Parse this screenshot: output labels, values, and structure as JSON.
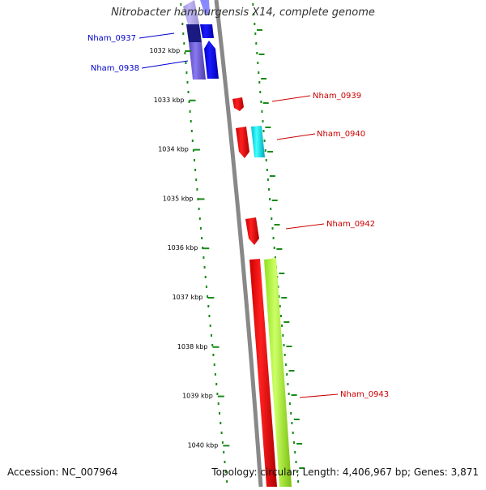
{
  "title": "Nitrobacter hamburgensis X14, complete genome",
  "footer": {
    "accession": "Accession: NC_007964",
    "topology": "Topology: circular; Length: 4,406,967 bp; Genes: 3,871"
  },
  "ruler": {
    "ticks": [
      {
        "label": "1032 kbp",
        "kbp": 1032
      },
      {
        "label": "1033 kbp",
        "kbp": 1033
      },
      {
        "label": "1034 kbp",
        "kbp": 1034
      },
      {
        "label": "1035 kbp",
        "kbp": 1035
      },
      {
        "label": "1036 kbp",
        "kbp": 1036
      },
      {
        "label": "1037 kbp",
        "kbp": 1037
      },
      {
        "label": "1038 kbp",
        "kbp": 1038
      },
      {
        "label": "1039 kbp",
        "kbp": 1039
      },
      {
        "label": "1040 kbp",
        "kbp": 1040
      }
    ]
  },
  "genes": [
    {
      "label": "Nham_0937",
      "color": "#0000cc",
      "side": "left"
    },
    {
      "label": "Nham_0938",
      "color": "#0000cc",
      "side": "left"
    },
    {
      "label": "Nham_0939",
      "color": "#cc0000",
      "side": "right"
    },
    {
      "label": "Nham_0940",
      "color": "#cc0000",
      "side": "right"
    },
    {
      "label": "Nham_0942",
      "color": "#cc0000",
      "side": "right"
    },
    {
      "label": "Nham_0943",
      "color": "#cc0000",
      "side": "right"
    }
  ],
  "colors": {
    "backbone": "#888888",
    "dots": "#1a8a1a",
    "blue_feature": "#0000ee",
    "purple_feature": "#6a5acd",
    "red_feature": "#ff0000",
    "cyan_feature": "#00e5ee",
    "lime_feature": "#adff2f"
  }
}
